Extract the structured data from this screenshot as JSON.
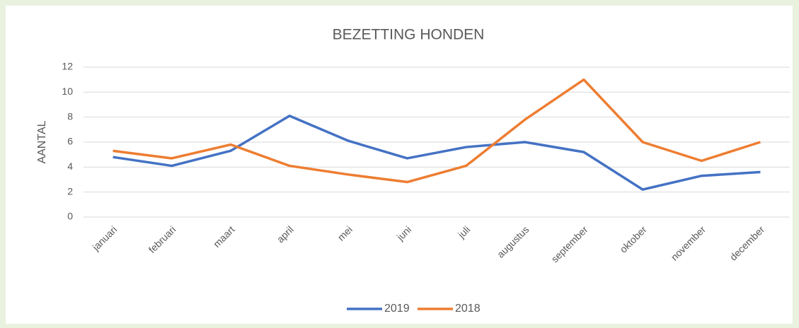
{
  "chart_data": {
    "type": "line",
    "title": "BEZETTING HONDEN",
    "y_label": "AANTAL",
    "categories": [
      "januari",
      "februari",
      "maart",
      "april",
      "mei",
      "juni",
      "juli",
      "augustus",
      "september",
      "oktober",
      "november",
      "december"
    ],
    "series": [
      {
        "name": "2019",
        "color": "#4472c4",
        "values": [
          4.8,
          4.1,
          5.3,
          8.1,
          6.1,
          4.7,
          5.6,
          6.0,
          5.2,
          2.2,
          3.3,
          3.6
        ]
      },
      {
        "name": "2018",
        "color": "#ed7d31",
        "values": [
          5.3,
          4.7,
          5.8,
          4.1,
          3.4,
          2.8,
          4.1,
          7.8,
          11.0,
          6.0,
          4.5,
          6.0
        ]
      }
    ],
    "ylim": [
      0,
      12
    ],
    "yticks": [
      0,
      2,
      4,
      6,
      8,
      10,
      12
    ],
    "grid": true,
    "legend": "bottom"
  }
}
